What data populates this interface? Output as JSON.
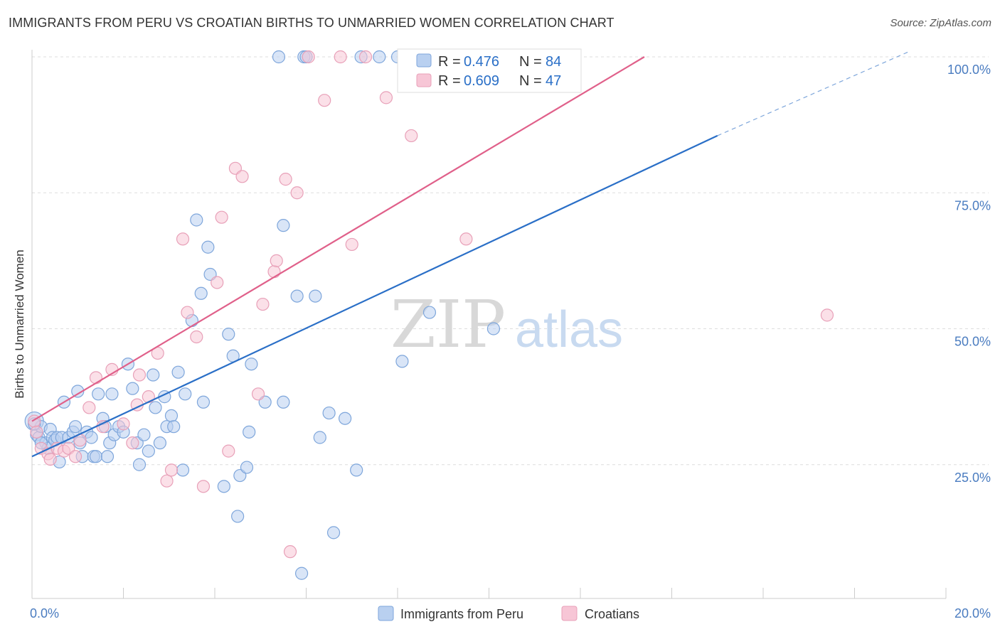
{
  "title": "IMMIGRANTS FROM PERU VS CROATIAN BIRTHS TO UNMARRIED WOMEN CORRELATION CHART",
  "source": "Source: ZipAtlas.com",
  "watermark": {
    "zip": "ZIP",
    "atlas": "atlas"
  },
  "colors": {
    "blue": "#4a7cc0",
    "blue_fill": "#b9d0f0",
    "blue_line": "#2a6fc7",
    "pink": "#e07098",
    "pink_fill": "#f7c6d6",
    "pink_line": "#e0608a",
    "grid": "#dddddd",
    "text_blue": "#4a7cc0"
  },
  "legend_top": [
    {
      "r_label": "R = ",
      "r_value": "0.476",
      "n_label": "N = ",
      "n_value": "84"
    },
    {
      "r_label": "R = ",
      "r_value": "0.609",
      "n_label": "N = ",
      "n_value": "47"
    }
  ],
  "legend_bottom": [
    "Immigrants from Peru",
    "Croatians"
  ],
  "chart_data": {
    "type": "scatter",
    "title": "IMMIGRANTS FROM PERU VS CROATIAN BIRTHS TO UNMARRIED WOMEN CORRELATION CHART",
    "xlabel": "",
    "ylabel": "Births to Unmarried Women",
    "xlim": [
      0,
      20
    ],
    "ylim": [
      0,
      105
    ],
    "x_tick_labels": [
      "0.0%",
      "20.0%"
    ],
    "y_ticks": [
      25,
      50,
      75,
      100
    ],
    "y_tick_labels": [
      "25.0%",
      "50.0%",
      "75.0%",
      "100.0%"
    ],
    "grid": true,
    "legend_placement": "bottom",
    "series": [
      {
        "name": "Immigrants from Peru",
        "regression": {
          "x": [
            0,
            15
          ],
          "y": [
            26.5,
            85.5
          ],
          "dashed_to": [
            19.2,
            101
          ]
        },
        "points": [
          [
            0.05,
            33
          ],
          [
            0.1,
            30.5
          ],
          [
            0.15,
            30
          ],
          [
            0.2,
            32
          ],
          [
            0.3,
            29
          ],
          [
            0.35,
            28
          ],
          [
            0.4,
            31.5
          ],
          [
            0.45,
            30
          ],
          [
            0.5,
            29.5
          ],
          [
            0.55,
            30
          ],
          [
            0.6,
            25.5
          ],
          [
            0.65,
            30
          ],
          [
            0.7,
            36.5
          ],
          [
            0.8,
            30
          ],
          [
            0.9,
            31
          ],
          [
            0.95,
            32
          ],
          [
            1.0,
            38.5
          ],
          [
            1.05,
            29
          ],
          [
            1.1,
            26.5
          ],
          [
            1.2,
            31
          ],
          [
            1.3,
            30
          ],
          [
            1.35,
            26.5
          ],
          [
            1.4,
            26.5
          ],
          [
            1.45,
            38
          ],
          [
            1.55,
            33.5
          ],
          [
            1.6,
            32
          ],
          [
            1.65,
            26.5
          ],
          [
            1.7,
            29
          ],
          [
            1.75,
            38
          ],
          [
            1.8,
            30.5
          ],
          [
            1.9,
            32
          ],
          [
            2.0,
            31
          ],
          [
            2.1,
            43.5
          ],
          [
            2.2,
            39
          ],
          [
            2.3,
            29
          ],
          [
            2.35,
            25
          ],
          [
            2.45,
            30.5
          ],
          [
            2.55,
            27.5
          ],
          [
            2.65,
            41.5
          ],
          [
            2.7,
            35.5
          ],
          [
            2.8,
            29
          ],
          [
            2.9,
            37.5
          ],
          [
            2.95,
            32
          ],
          [
            3.05,
            34
          ],
          [
            3.1,
            32
          ],
          [
            3.2,
            42
          ],
          [
            3.3,
            24
          ],
          [
            3.35,
            38
          ],
          [
            3.5,
            51.5
          ],
          [
            3.6,
            70
          ],
          [
            3.7,
            56.5
          ],
          [
            3.75,
            36.5
          ],
          [
            3.85,
            65
          ],
          [
            3.9,
            60
          ],
          [
            4.2,
            21
          ],
          [
            4.3,
            49
          ],
          [
            4.4,
            45
          ],
          [
            4.5,
            15.5
          ],
          [
            4.55,
            23
          ],
          [
            4.7,
            24.5
          ],
          [
            4.75,
            31
          ],
          [
            4.8,
            43.5
          ],
          [
            5.1,
            36.5
          ],
          [
            5.4,
            100
          ],
          [
            5.5,
            36.5
          ],
          [
            5.5,
            69
          ],
          [
            5.8,
            56
          ],
          [
            5.9,
            5
          ],
          [
            5.95,
            100
          ],
          [
            6.0,
            100
          ],
          [
            6.2,
            56
          ],
          [
            6.3,
            30
          ],
          [
            6.5,
            34.5
          ],
          [
            6.6,
            12.5
          ],
          [
            6.85,
            33.5
          ],
          [
            7.1,
            24
          ],
          [
            7.2,
            100
          ],
          [
            7.6,
            100
          ],
          [
            8.0,
            100
          ],
          [
            8.1,
            44
          ],
          [
            8.7,
            53
          ],
          [
            10.1,
            50
          ],
          [
            0.05,
            32.5
          ],
          [
            0.2,
            29
          ]
        ]
      },
      {
        "name": "Croatians",
        "regression": {
          "x": [
            0,
            13.4
          ],
          "y": [
            33,
            100
          ]
        },
        "points": [
          [
            0.05,
            33
          ],
          [
            0.1,
            31
          ],
          [
            0.2,
            28
          ],
          [
            0.35,
            27
          ],
          [
            0.4,
            26
          ],
          [
            0.55,
            28
          ],
          [
            0.7,
            27.5
          ],
          [
            0.8,
            28
          ],
          [
            0.95,
            26.5
          ],
          [
            1.05,
            29.5
          ],
          [
            1.25,
            35.5
          ],
          [
            1.4,
            41
          ],
          [
            1.55,
            32
          ],
          [
            1.75,
            42.5
          ],
          [
            2.0,
            32.5
          ],
          [
            2.2,
            29
          ],
          [
            2.3,
            36
          ],
          [
            2.35,
            41.5
          ],
          [
            2.55,
            37.5
          ],
          [
            2.75,
            45.5
          ],
          [
            2.95,
            22
          ],
          [
            3.05,
            24
          ],
          [
            3.3,
            66.5
          ],
          [
            3.4,
            53
          ],
          [
            3.6,
            48.5
          ],
          [
            3.75,
            21
          ],
          [
            4.05,
            58.5
          ],
          [
            4.15,
            70.5
          ],
          [
            4.3,
            27.5
          ],
          [
            4.45,
            79.5
          ],
          [
            4.6,
            78
          ],
          [
            4.95,
            38
          ],
          [
            5.05,
            54.5
          ],
          [
            5.3,
            60.5
          ],
          [
            5.35,
            62.5
          ],
          [
            5.55,
            77.5
          ],
          [
            5.8,
            75
          ],
          [
            5.65,
            9
          ],
          [
            6.05,
            100
          ],
          [
            6.4,
            92
          ],
          [
            6.75,
            100
          ],
          [
            7.0,
            65.5
          ],
          [
            7.3,
            100
          ],
          [
            7.75,
            92.5
          ],
          [
            8.3,
            85.5
          ],
          [
            9.5,
            66.5
          ],
          [
            17.4,
            52.5
          ]
        ]
      }
    ]
  }
}
